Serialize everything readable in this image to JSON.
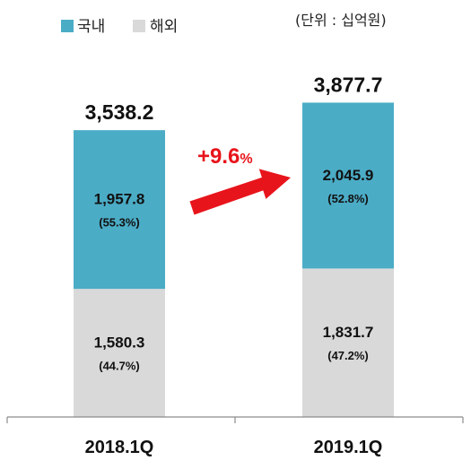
{
  "chart_data": {
    "type": "bar",
    "stacked": true,
    "unit_label": "(단위 : 십억원)",
    "categories": [
      "2018.1Q",
      "2019.1Q"
    ],
    "totals": [
      "3,538.2",
      "3,877.7"
    ],
    "series": [
      {
        "name": "해외",
        "color": "#d9d9d9",
        "values": [
          1580.3,
          1831.7
        ],
        "labels": [
          "1,580.3",
          "1,831.7"
        ],
        "pct_labels": [
          "(44.7%)",
          "(47.2%)"
        ]
      },
      {
        "name": "국내",
        "color": "#4bacc6",
        "values": [
          1957.8,
          2045.9
        ],
        "labels": [
          "1,957.8",
          "2,045.9"
        ],
        "pct_labels": [
          "(55.3%)",
          "(52.8%)"
        ]
      }
    ],
    "growth": {
      "value": "+9.6",
      "unit": "%",
      "color": "#e8141b"
    },
    "legend_position": "top-left",
    "grid": false
  }
}
